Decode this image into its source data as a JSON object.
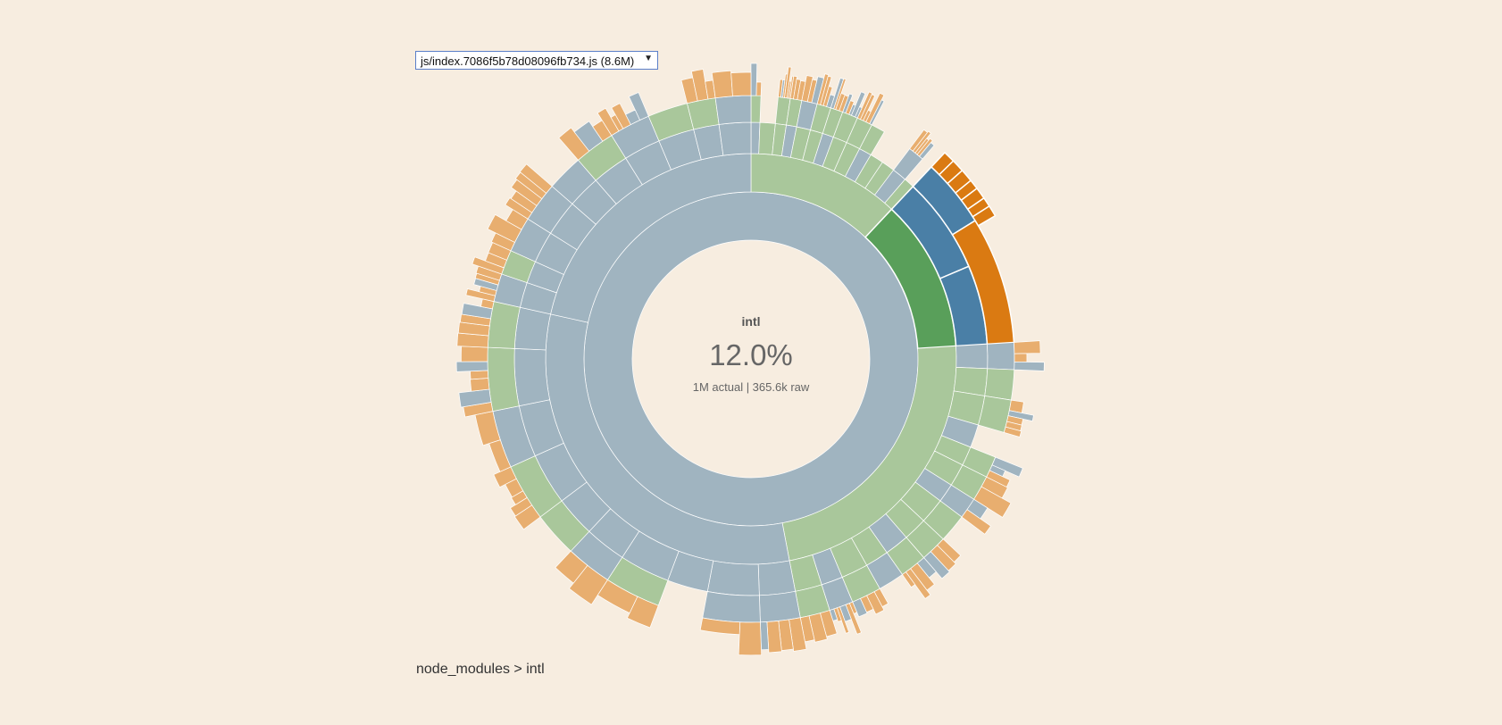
{
  "bundle_select": {
    "value": "js/index.7086f5b78d08096fb734.js (8.6M)"
  },
  "center": {
    "name": "intl",
    "percent": "12.0%",
    "sizes": "1M actual | 365.6k raw"
  },
  "breadcrumb": "node_modules > intl",
  "colors": {
    "background": "#f7ede0",
    "folder": "#a0b4c0",
    "module_green": "#a9c79b",
    "file_orange": "#e8ae6f",
    "highlight_green": "#599f5a",
    "highlight_blue": "#4a7fa6",
    "highlight_orange": "#da7a12"
  },
  "chart_data": {
    "type": "sunburst",
    "title": "intl",
    "selected_path": [
      "node_modules",
      "intl"
    ],
    "selected_share": 12.0,
    "rings": [
      {
        "depth": 1,
        "segments": [
          {
            "name": "node_modules",
            "share": 100,
            "color": "folder"
          }
        ]
      },
      {
        "depth": 2,
        "segments": [
          {
            "name": "",
            "share": 12.0,
            "color": "module_green"
          },
          {
            "name": "intl",
            "share": 12.0,
            "color": "highlight_green",
            "highlighted": true
          },
          {
            "name": "",
            "share": 23.0,
            "color": "module_green"
          },
          {
            "name": "",
            "share": 31.5,
            "color": "folder"
          },
          {
            "name": "",
            "share": 21.5,
            "color": "folder"
          }
        ]
      }
    ]
  }
}
